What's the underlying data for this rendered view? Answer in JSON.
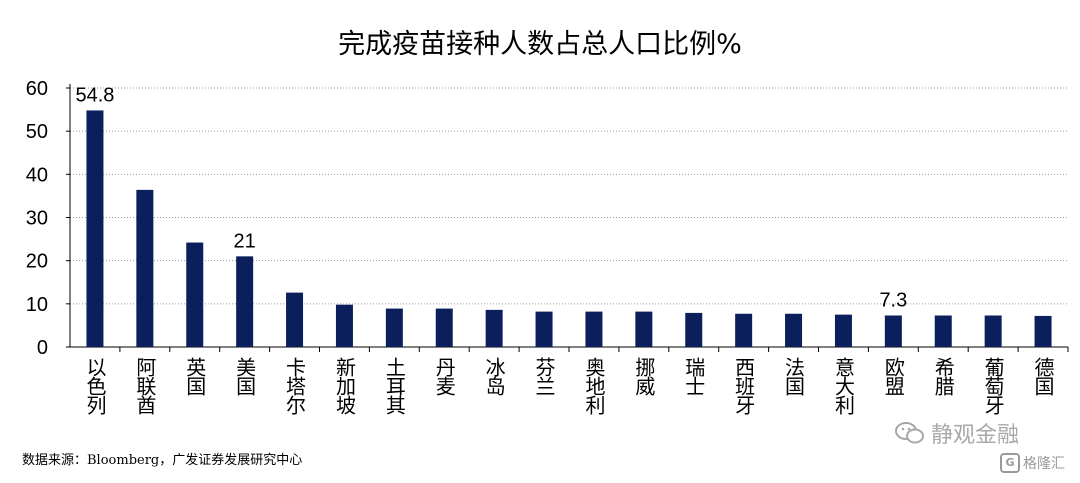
{
  "chart_data": {
    "type": "bar",
    "title": "完成疫苗接种人数占总人口比例%",
    "categories": [
      "以色列",
      "阿联酋",
      "英国",
      "美国",
      "卡塔尔",
      "新加坡",
      "土耳其",
      "丹麦",
      "冰岛",
      "芬兰",
      "奥地利",
      "挪威",
      "瑞士",
      "西班牙",
      "法国",
      "意大利",
      "欧盟",
      "希腊",
      "葡萄牙",
      "德国"
    ],
    "values": [
      54.8,
      36.4,
      24.2,
      21.0,
      12.6,
      9.8,
      8.9,
      8.9,
      8.6,
      8.2,
      8.2,
      8.2,
      7.9,
      7.7,
      7.7,
      7.5,
      7.3,
      7.3,
      7.3,
      7.2
    ],
    "data_labels": {
      "0": "54.8",
      "3": "21",
      "16": "7.3"
    },
    "yticks": [
      "0",
      "10",
      "20",
      "30",
      "40",
      "50",
      "60"
    ],
    "ylim": [
      0,
      60
    ],
    "grid": true,
    "bar_color": "#0b1f5c"
  },
  "source_text": "数据来源：Bloomberg，广发证券发展研究中心",
  "watermark": {
    "text1": "静观金融",
    "icon1": "wechat-icon",
    "text2": "格隆汇",
    "icon2": "gelonghui-logo-icon",
    "icon2_letter": "G"
  }
}
